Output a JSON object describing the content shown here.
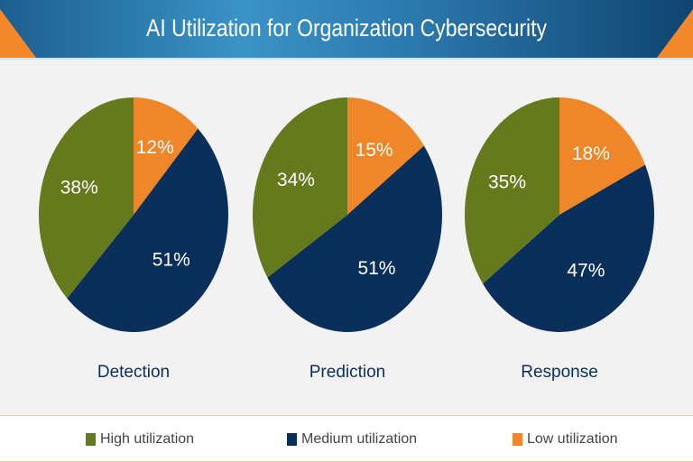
{
  "chart_data": {
    "type": "pie",
    "title": "AI Utilization for Organization Cybersecurity",
    "series_names": [
      "High utilization",
      "Medium utilization",
      "Low utilization"
    ],
    "colors": {
      "High utilization": "#657a1c",
      "Medium utilization": "#0b2f5b",
      "Low utilization": "#f0862a"
    },
    "legend_position": "bottom",
    "pies": [
      {
        "label": "Detection",
        "values": {
          "Low utilization": 12,
          "Medium utilization": 51,
          "High utilization": 38
        },
        "labels": {
          "Low utilization": "12%",
          "Medium utilization": "51%",
          "High utilization": "38%"
        }
      },
      {
        "label": "Prediction",
        "values": {
          "Low utilization": 15,
          "Medium utilization": 51,
          "High utilization": 34
        },
        "labels": {
          "Low utilization": "15%",
          "Medium utilization": "51%",
          "High utilization": "34%"
        }
      },
      {
        "label": "Response",
        "values": {
          "Low utilization": 18,
          "Medium utilization": 47,
          "High utilization": 35
        },
        "labels": {
          "Low utilization": "18%",
          "Medium utilization": "47%",
          "High utilization": "35%"
        }
      }
    ]
  }
}
